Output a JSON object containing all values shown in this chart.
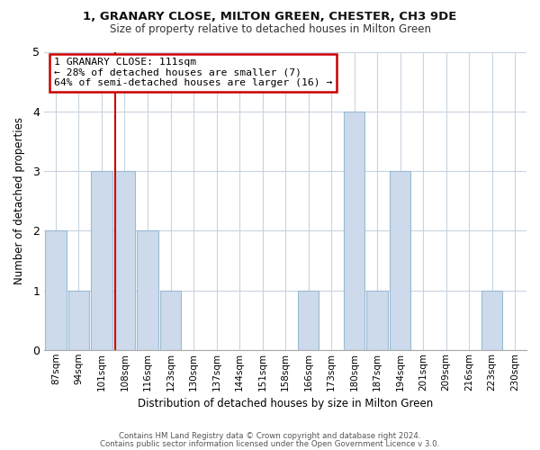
{
  "title1": "1, GRANARY CLOSE, MILTON GREEN, CHESTER, CH3 9DE",
  "title2": "Size of property relative to detached houses in Milton Green",
  "xlabel": "Distribution of detached houses by size in Milton Green",
  "ylabel": "Number of detached properties",
  "footer1": "Contains HM Land Registry data © Crown copyright and database right 2024.",
  "footer2": "Contains public sector information licensed under the Open Government Licence v 3.0.",
  "bin_labels": [
    "87sqm",
    "94sqm",
    "101sqm",
    "108sqm",
    "116sqm",
    "123sqm",
    "130sqm",
    "137sqm",
    "144sqm",
    "151sqm",
    "158sqm",
    "166sqm",
    "173sqm",
    "180sqm",
    "187sqm",
    "194sqm",
    "201sqm",
    "209sqm",
    "216sqm",
    "223sqm",
    "230sqm"
  ],
  "values": [
    2,
    1,
    3,
    3,
    2,
    1,
    0,
    0,
    0,
    0,
    0,
    1,
    0,
    4,
    1,
    3,
    0,
    0,
    0,
    1,
    0
  ],
  "bar_color": "#ccdaeb",
  "bar_edgecolor": "#9bbbd4",
  "vline_x_index": 3,
  "vline_color": "#cc0000",
  "annotation_title": "1 GRANARY CLOSE: 111sqm",
  "annotation_line1": "← 28% of detached houses are smaller (7)",
  "annotation_line2": "64% of semi-detached houses are larger (16) →",
  "annotation_box_edgecolor": "#cc0000",
  "ylim": [
    0,
    5
  ],
  "yticks": [
    0,
    1,
    2,
    3,
    4,
    5
  ],
  "background_color": "#ffffff",
  "grid_color": "#c8d4e0"
}
